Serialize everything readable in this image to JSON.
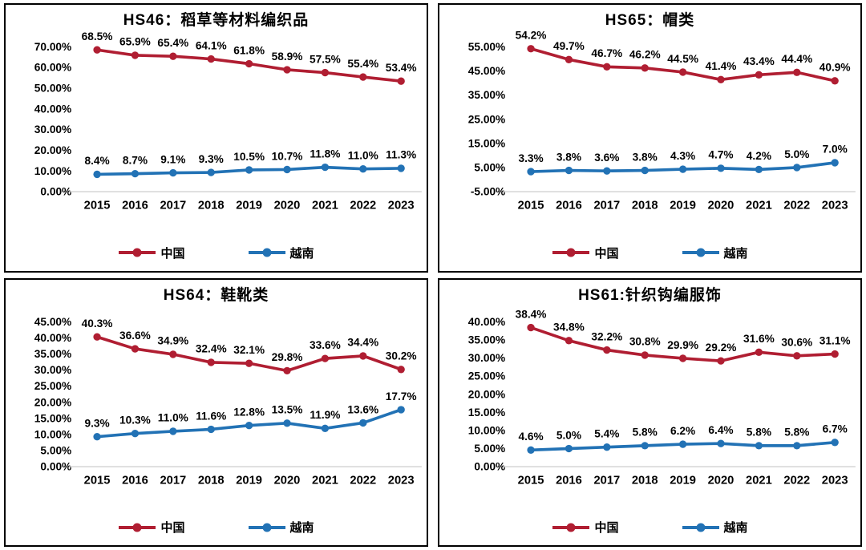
{
  "legend": {
    "china_label": "中国",
    "vietnam_label": "越南"
  },
  "colors": {
    "china": "#B01E32",
    "vietnam": "#2272B5",
    "axis_line": "#D9D9D9",
    "text": "#000000"
  },
  "chart_data": [
    {
      "type": "line",
      "title": "HS46：稻草等材料编织品",
      "categories": [
        "2015",
        "2016",
        "2017",
        "2018",
        "2019",
        "2020",
        "2021",
        "2022",
        "2023"
      ],
      "series": [
        {
          "name": "中国",
          "color": "#B01E32",
          "values": [
            68.5,
            65.9,
            65.4,
            64.1,
            61.8,
            58.9,
            57.5,
            55.4,
            53.4
          ]
        },
        {
          "name": "越南",
          "color": "#2272B5",
          "values": [
            8.4,
            8.7,
            9.1,
            9.3,
            10.5,
            10.7,
            11.8,
            11.0,
            11.3
          ]
        }
      ],
      "ylim": [
        0,
        70
      ],
      "ystep": 10,
      "ytick_labels": [
        "70.00%",
        "60.00%",
        "50.00%",
        "40.00%",
        "30.00%",
        "20.00%",
        "10.00%",
        "0.00%"
      ],
      "grid": false,
      "legend_position": "bottom"
    },
    {
      "type": "line",
      "title": "HS65：帽类",
      "categories": [
        "2015",
        "2016",
        "2017",
        "2018",
        "2019",
        "2020",
        "2021",
        "2022",
        "2023"
      ],
      "series": [
        {
          "name": "中国",
          "color": "#B01E32",
          "values": [
            54.2,
            49.7,
            46.7,
            46.2,
            44.5,
            41.4,
            43.4,
            44.4,
            40.9
          ]
        },
        {
          "name": "越南",
          "color": "#2272B5",
          "values": [
            3.3,
            3.8,
            3.6,
            3.8,
            4.3,
            4.7,
            4.2,
            5.0,
            7.0
          ]
        }
      ],
      "ylim": [
        -5,
        55
      ],
      "ystep": 10,
      "ytick_labels": [
        "55.00%",
        "45.00%",
        "35.00%",
        "25.00%",
        "15.00%",
        "5.00%",
        "-5.00%"
      ],
      "grid": false,
      "legend_position": "bottom"
    },
    {
      "type": "line",
      "title": "HS64：鞋靴类",
      "categories": [
        "2015",
        "2016",
        "2017",
        "2018",
        "2019",
        "2020",
        "2021",
        "2022",
        "2023"
      ],
      "series": [
        {
          "name": "中国",
          "color": "#B01E32",
          "values": [
            40.3,
            36.6,
            34.9,
            32.4,
            32.1,
            29.8,
            33.6,
            34.4,
            30.2
          ]
        },
        {
          "name": "越南",
          "color": "#2272B5",
          "values": [
            9.3,
            10.3,
            11.0,
            11.6,
            12.8,
            13.5,
            11.9,
            13.6,
            17.7
          ]
        }
      ],
      "ylim": [
        0,
        45
      ],
      "ystep": 5,
      "ytick_labels": [
        "45.00%",
        "40.00%",
        "35.00%",
        "30.00%",
        "25.00%",
        "20.00%",
        "15.00%",
        "10.00%",
        "5.00%",
        "0.00%"
      ],
      "grid": false,
      "legend_position": "bottom"
    },
    {
      "type": "line",
      "title": "HS61:针织钩编服饰",
      "categories": [
        "2015",
        "2016",
        "2017",
        "2018",
        "2019",
        "2020",
        "2021",
        "2022",
        "2023"
      ],
      "series": [
        {
          "name": "中国",
          "color": "#B01E32",
          "values": [
            38.4,
            34.8,
            32.2,
            30.8,
            29.9,
            29.2,
            31.6,
            30.6,
            31.1
          ]
        },
        {
          "name": "越南",
          "color": "#2272B5",
          "values": [
            4.6,
            5.0,
            5.4,
            5.8,
            6.2,
            6.4,
            5.8,
            5.8,
            6.7
          ]
        }
      ],
      "ylim": [
        0,
        40
      ],
      "ystep": 5,
      "ytick_labels": [
        "40.00%",
        "35.00%",
        "30.00%",
        "25.00%",
        "20.00%",
        "15.00%",
        "10.00%",
        "5.00%",
        "0.00%"
      ],
      "grid": false,
      "legend_position": "bottom"
    }
  ]
}
